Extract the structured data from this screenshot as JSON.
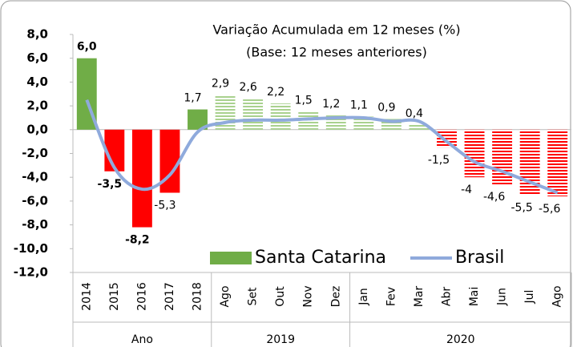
{
  "chart_data": {
    "type": "bar",
    "title": "Variação Acumulada em 12 meses (%)",
    "subtitle": "(Base: 12 meses anteriores)",
    "categories": [
      "2014",
      "2015",
      "2016",
      "2017",
      "2018",
      "Ago",
      "Set",
      "Out",
      "Nov",
      "Dez",
      "Jan",
      "Fev",
      "Mar",
      "Abr",
      "Mai",
      "Jun",
      "Jul",
      "Ago"
    ],
    "groups": [
      {
        "label": "Ano",
        "span": 5
      },
      {
        "label": "2019",
        "span": 5
      },
      {
        "label": "2020",
        "span": 8
      }
    ],
    "series": [
      {
        "name": "Santa Catarina",
        "type": "bar",
        "color": "#70ad47",
        "negative_color": "#ff0000",
        "fill": [
          "solid",
          "solid",
          "solid",
          "solid",
          "solid",
          "hatched",
          "hatched",
          "hatched",
          "hatched",
          "hatched",
          "hatched",
          "hatched",
          "hatched",
          "hatched",
          "hatched",
          "hatched",
          "hatched",
          "hatched"
        ],
        "values": [
          6.0,
          -3.5,
          -8.2,
          -5.3,
          1.7,
          2.9,
          2.6,
          2.2,
          1.5,
          1.2,
          1.1,
          0.9,
          0.4,
          -1.5,
          -4,
          -4.6,
          -5.5,
          -5.6
        ],
        "value_labels": [
          "6,0",
          "-3,5",
          "-8,2",
          "-5,3",
          "1,7",
          "2,9",
          "2,6",
          "2,2",
          "1,5",
          "1,2",
          "1,1",
          "0,9",
          "0,4",
          "-1,5",
          "-4",
          "-4,6",
          "-5,5",
          "-5,6"
        ]
      },
      {
        "name": "Brasil",
        "type": "line",
        "color": "#8faadc",
        "values": [
          2.5,
          -3.2,
          -5.0,
          -3.8,
          -0.2,
          0.6,
          0.8,
          0.8,
          0.9,
          1.0,
          1.0,
          0.7,
          0.7,
          -1.0,
          -2.7,
          -3.5,
          -4.4,
          -5.3
        ]
      }
    ],
    "ylim": [
      -12,
      8
    ],
    "yticks": [
      {
        "value": -12,
        "label": "-12,0"
      },
      {
        "value": -10,
        "label": "-10,0"
      },
      {
        "value": -8,
        "label": "-8,0"
      },
      {
        "value": -6,
        "label": "-6,0"
      },
      {
        "value": -4,
        "label": "-4,0"
      },
      {
        "value": -2,
        "label": "-2,0"
      },
      {
        "value": 0,
        "label": "0,0"
      },
      {
        "value": 2,
        "label": "2,0"
      },
      {
        "value": 4,
        "label": "4,0"
      },
      {
        "value": 6,
        "label": "6,0"
      },
      {
        "value": 8,
        "label": "8,0"
      }
    ],
    "legend": "bottom-right"
  }
}
